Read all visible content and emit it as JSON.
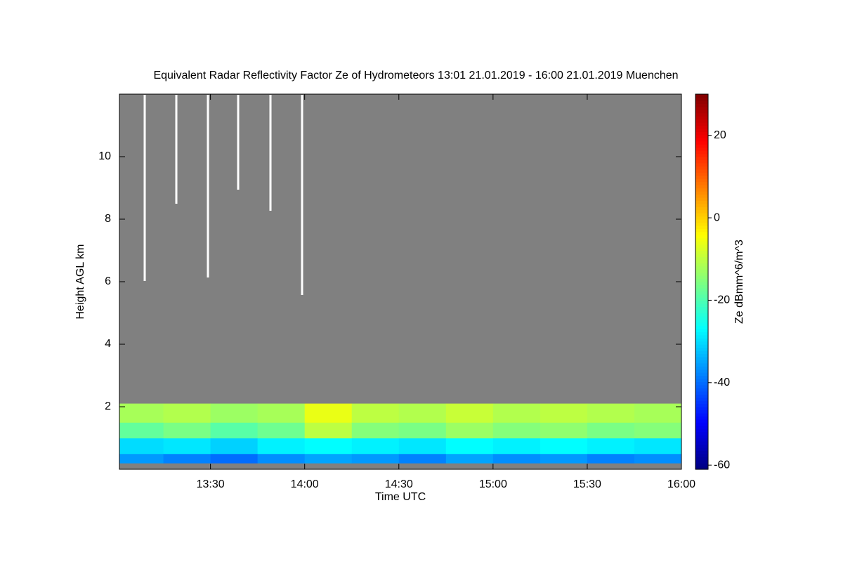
{
  "chart_data": {
    "type": "heatmap",
    "title": "Equivalent Radar Reflectivity Factor Ze of Hydrometeors   13:01 21.01.2019 - 16:00 21.01.2019 Muenchen",
    "x_label": "Time UTC",
    "y_label": "Height AGL km",
    "colorbar_label": "Ze dBmm^6/m^3",
    "xlim": [
      781,
      960
    ],
    "xticks": [
      {
        "value": 810,
        "label": "13:30"
      },
      {
        "value": 840,
        "label": "14:00"
      },
      {
        "value": 870,
        "label": "14:30"
      },
      {
        "value": 900,
        "label": "15:00"
      },
      {
        "value": 930,
        "label": "15:30"
      },
      {
        "value": 960,
        "label": "16:00"
      }
    ],
    "ylim": [
      0,
      12
    ],
    "yticks": [
      2,
      4,
      6,
      8,
      10
    ],
    "zlim": [
      -61,
      30
    ],
    "zticks": [
      -60,
      -40,
      -20,
      0,
      20
    ],
    "colormap": "jet",
    "background": "#808080",
    "x_bins": [
      781,
      795,
      810,
      825,
      840,
      855,
      870,
      885,
      900,
      915,
      930,
      945,
      960
    ],
    "y_bins": [
      0.2,
      0.5,
      1.0,
      1.5,
      2.1
    ],
    "values": [
      [
        -36,
        -30,
        -18,
        -12
      ],
      [
        -38,
        -29,
        -16,
        -11
      ],
      [
        -40,
        -31,
        -19,
        -13
      ],
      [
        -37,
        -28,
        -17,
        -12
      ],
      [
        -35,
        -27,
        -10,
        -6
      ],
      [
        -36,
        -28,
        -15,
        -10
      ],
      [
        -38,
        -29,
        -16,
        -11
      ],
      [
        -35,
        -27,
        -13,
        -9
      ],
      [
        -37,
        -28,
        -15,
        -11
      ],
      [
        -36,
        -27,
        -14,
        -10
      ],
      [
        -38,
        -28,
        -16,
        -11
      ],
      [
        -37,
        -29,
        -15,
        -12
      ]
    ]
  }
}
